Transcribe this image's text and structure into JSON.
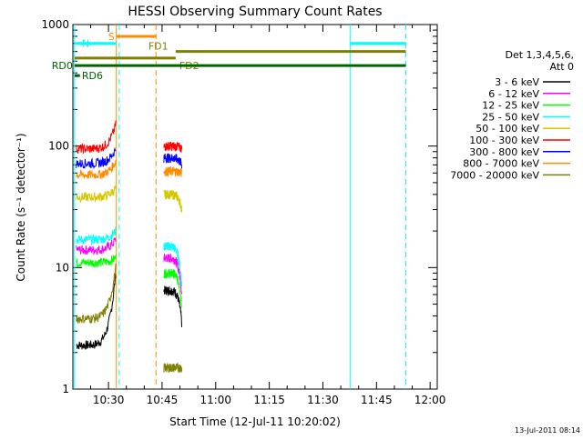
{
  "chart_data": {
    "type": "line",
    "title": "HESSI Observing Summary Count Rates",
    "xlabel": "Start Time (12-Jul-11 10:20:02)",
    "ylabel": "Count Rate (s⁻¹ detector⁻¹)",
    "y_scale": "log",
    "ylim": [
      1,
      1000
    ],
    "x_range_min": [
      20.03,
      122.0
    ],
    "x_ticks": [
      {
        "min": 30,
        "label": "10:30"
      },
      {
        "min": 45,
        "label": "10:45"
      },
      {
        "min": 60,
        "label": "11:00"
      },
      {
        "min": 75,
        "label": "11:15"
      },
      {
        "min": 90,
        "label": "11:30"
      },
      {
        "min": 105,
        "label": "11:45"
      },
      {
        "min": 120,
        "label": "12:00"
      }
    ],
    "y_ticks": [
      {
        "v": 1,
        "label": "1"
      },
      {
        "v": 10,
        "label": "10"
      },
      {
        "v": 100,
        "label": "100"
      },
      {
        "v": 1000,
        "label": "1000"
      }
    ],
    "legend": {
      "title": [
        "Det 1,3,4,5,6,",
        "Att 0"
      ],
      "position": "right"
    },
    "series": [
      {
        "name": "3 - 6 keV",
        "color": "#000000",
        "seg1": {
          "x0": 21.0,
          "x1": 32.0,
          "y": 2.3,
          "end": 9
        },
        "seg2": {
          "x0": 45.5,
          "x1": 50.5,
          "y": 6.5,
          "end": 3.5
        }
      },
      {
        "name": "6 - 12 keV",
        "color": "#ff00ff",
        "seg1": {
          "x0": 21.0,
          "x1": 32.0,
          "y": 14,
          "end": 17
        },
        "seg2": {
          "x0": 45.5,
          "x1": 50.5,
          "y": 12,
          "end": 6
        }
      },
      {
        "name": "12 - 25 keV",
        "color": "#00ff00",
        "seg1": {
          "x0": 21.0,
          "x1": 32.0,
          "y": 11,
          "end": 12
        },
        "seg2": {
          "x0": 45.5,
          "x1": 50.5,
          "y": 9,
          "end": 5
        }
      },
      {
        "name": "25 - 50 keV",
        "color": "#00ffff",
        "seg1": {
          "x0": 21.0,
          "x1": 32.0,
          "y": 17,
          "end": 20
        },
        "seg2": {
          "x0": 45.5,
          "x1": 50.5,
          "y": 15,
          "end": 7
        }
      },
      {
        "name": "50 - 100 keV",
        "color": "#d4c800",
        "seg1": {
          "x0": 21.0,
          "x1": 32.0,
          "y": 38,
          "end": 45
        },
        "seg2": {
          "x0": 45.5,
          "x1": 50.5,
          "y": 40,
          "end": 30
        }
      },
      {
        "name": "100 - 300 keV",
        "color": "#ff0000",
        "seg1": {
          "x0": 21.0,
          "x1": 32.0,
          "y": 95,
          "end": 150
        },
        "seg2": {
          "x0": 45.5,
          "x1": 50.5,
          "y": 100,
          "end": 95
        }
      },
      {
        "name": "300 - 800 keV",
        "color": "#0000ff",
        "seg1": {
          "x0": 21.0,
          "x1": 32.0,
          "y": 72,
          "end": 95
        },
        "seg2": {
          "x0": 45.5,
          "x1": 50.5,
          "y": 80,
          "end": 70
        }
      },
      {
        "name": "800 - 7000 keV",
        "color": "#ff8c00",
        "seg1": {
          "x0": 21.0,
          "x1": 32.0,
          "y": 58,
          "end": 75
        },
        "seg2": {
          "x0": 45.5,
          "x1": 50.5,
          "y": 62,
          "end": 60
        }
      },
      {
        "name": "7000 - 20000 keV",
        "color": "#7f7f00",
        "seg1": {
          "x0": 21.0,
          "x1": 32.0,
          "y": 3.8,
          "end": 10
        },
        "seg2": {
          "x0": 45.5,
          "x1": 50.5,
          "y": 1.5,
          "end": 1.5
        }
      }
    ],
    "vertical_lines": [
      {
        "min": 20.5,
        "color": "#00ffff",
        "dash": false
      },
      {
        "min": 32.2,
        "color": "#ff8c00",
        "dash": false
      },
      {
        "min": 33.0,
        "color": "#00ffff",
        "dash": true
      },
      {
        "min": 43.3,
        "color": "#ff8c00",
        "dash": true
      },
      {
        "min": 97.6,
        "color": "#00ffff",
        "dash": false
      },
      {
        "min": 113.2,
        "color": "#00ffff",
        "dash": true
      }
    ],
    "flag_bars": [
      {
        "label": "S",
        "color": "#ff8c00",
        "x0": 32.2,
        "x1": 43.3,
        "value": 800,
        "label_side": "left"
      },
      {
        "label": "N",
        "color": "#00ffff",
        "x0": 20.5,
        "x1": 32.2,
        "value": 700,
        "label_side": "right"
      },
      {
        "label": "N",
        "color": "#00ffff",
        "x0": 97.6,
        "x1": 113.2,
        "value": 700,
        "label_side": "none"
      },
      {
        "label": "FD1",
        "color": "#7f7f00",
        "x0": 48.8,
        "x1": 113.2,
        "value": 600,
        "label_side": "above-left"
      },
      {
        "label": "FD2",
        "color": "#7f7f00",
        "x0": 20.5,
        "x1": 48.8,
        "value": 530,
        "label_side": "below-right"
      },
      {
        "label": "RD0",
        "color": "#006400",
        "x0": 20.5,
        "x1": 113.2,
        "value": 460,
        "label_side": "left"
      },
      {
        "label": "RD6",
        "color": "#006400",
        "x0": 20.5,
        "x1": 22.0,
        "value": 380,
        "label_side": "right"
      }
    ],
    "footer_date": "13-Jul-2011 08:14"
  }
}
